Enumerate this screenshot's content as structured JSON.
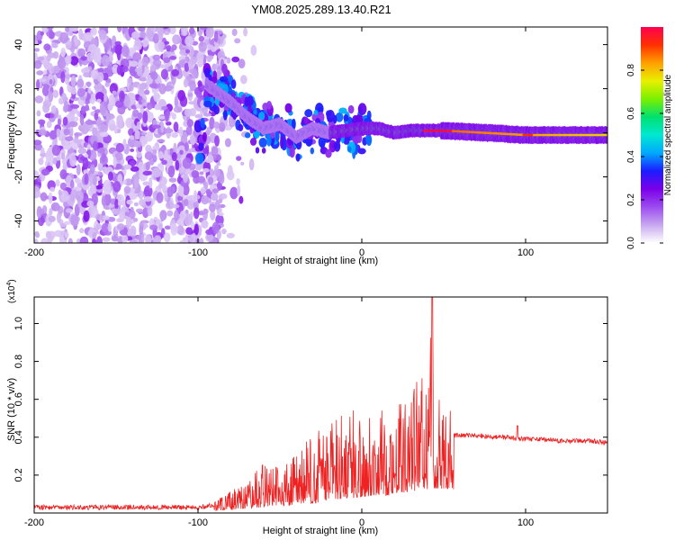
{
  "title": "YM08.2025.289.13.40.R21",
  "chart_data": [
    {
      "type": "heatmap",
      "xlabel": "Height of straight line (km)",
      "ylabel": "Frequency (Hz)",
      "xlim": [
        -200,
        150
      ],
      "ylim": [
        -50,
        48
      ],
      "xticks": [
        -200,
        -100,
        0,
        100
      ],
      "xtick_labels": [
        "-200",
        "-100",
        "0",
        "100"
      ],
      "yticks": [
        -40,
        -20,
        0,
        20,
        40
      ],
      "ytick_labels": [
        "-40",
        "-20",
        "0",
        "20",
        "40"
      ],
      "colorbar": {
        "label": "Normalized spectral amplitude",
        "range": [
          0,
          1
        ],
        "ticks": [
          0,
          0.2,
          0.4,
          0.6,
          0.8
        ],
        "tick_labels": [
          "0.0",
          "0.2",
          "0.4",
          "0.6",
          "0.8"
        ],
        "colors": [
          "#ffffff",
          "#c8a8f0",
          "#9c4cf0",
          "#7a00e8",
          "#1c1cff",
          "#00a8ff",
          "#00e8d0",
          "#00e070",
          "#7af000",
          "#e8f000",
          "#ffa000",
          "#ff3000",
          "#ff0050"
        ]
      },
      "ridge": [
        {
          "x": -95,
          "f": 22
        },
        {
          "x": -80,
          "f": 14
        },
        {
          "x": -70,
          "f": 7
        },
        {
          "x": -60,
          "f": 2
        },
        {
          "x": -50,
          "f": 4
        },
        {
          "x": -40,
          "f": -2
        },
        {
          "x": -30,
          "f": 2
        },
        {
          "x": -20,
          "f": 0
        },
        {
          "x": -10,
          "f": 1
        },
        {
          "x": 0,
          "f": 2
        },
        {
          "x": 10,
          "f": 2
        },
        {
          "x": 20,
          "f": 0
        },
        {
          "x": 30,
          "f": 1
        },
        {
          "x": 40,
          "f": 1
        },
        {
          "x": 50,
          "f": 1
        },
        {
          "x": 100,
          "f": -1
        },
        {
          "x": 150,
          "f": -1
        }
      ]
    },
    {
      "type": "line",
      "xlabel": "Height of straight line (km)",
      "ylabel": "SNR (10 * v/v)",
      "y_scale_label": "(x10",
      "y_scale_exponent": "4",
      "y_scale_close": ")",
      "xlim": [
        -200,
        150
      ],
      "ylim": [
        0,
        1.14
      ],
      "xticks": [
        -200,
        -100,
        0,
        100
      ],
      "xtick_labels": [
        "-200",
        "-100",
        "0",
        "100"
      ],
      "yticks": [
        0.2,
        0.4,
        0.6,
        0.8,
        1.0
      ],
      "ytick_labels": [
        "0.2",
        "0.4",
        "0.6",
        "0.8",
        "1.0"
      ],
      "color": "#ee2222",
      "series": [
        {
          "name": "SNR",
          "x": [
            -200,
            -150,
            -100,
            -90,
            -80,
            -70,
            -60,
            -55,
            -50,
            -45,
            -40,
            -35,
            -30,
            -25,
            -20,
            -15,
            -10,
            -5,
            0,
            5,
            10,
            15,
            20,
            25,
            30,
            35,
            40,
            43,
            45,
            50,
            55,
            56,
            60,
            70,
            80,
            90,
            95,
            100,
            110,
            120,
            130,
            140,
            150
          ],
          "base": [
            0.03,
            0.03,
            0.03,
            0.04,
            0.06,
            0.08,
            0.1,
            0.12,
            0.14,
            0.12,
            0.15,
            0.17,
            0.16,
            0.2,
            0.22,
            0.24,
            0.26,
            0.25,
            0.28,
            0.3,
            0.32,
            0.3,
            0.34,
            0.36,
            0.38,
            0.4,
            0.42,
            0.45,
            0.43,
            0.42,
            0.44,
            0.41,
            0.41,
            0.41,
            0.4,
            0.4,
            0.39,
            0.39,
            0.39,
            0.38,
            0.38,
            0.38,
            0.37
          ],
          "peaks": [
            0.04,
            0.04,
            0.04,
            0.06,
            0.12,
            0.16,
            0.28,
            0.3,
            0.26,
            0.28,
            0.32,
            0.38,
            0.42,
            0.46,
            0.5,
            0.52,
            0.58,
            0.55,
            0.56,
            0.54,
            0.58,
            0.52,
            0.62,
            0.56,
            0.68,
            0.74,
            0.72,
            1.14,
            0.72,
            0.66,
            0.58,
            0.42,
            0.42,
            0.43,
            0.42,
            0.42,
            0.46,
            0.41,
            0.41,
            0.4,
            0.4,
            0.39,
            0.38
          ]
        }
      ]
    }
  ]
}
